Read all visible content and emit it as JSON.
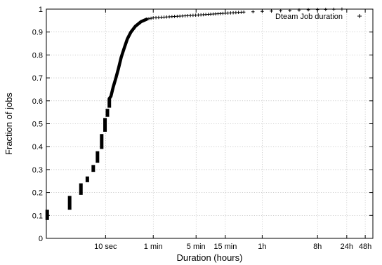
{
  "chart_data": {
    "type": "scatter",
    "xlabel": "Duration (hours)",
    "ylabel": "Fraction of jobs",
    "x_scale": "log",
    "x_unit": "hours",
    "xlim": [
      0.0003,
      64
    ],
    "ylim": [
      0,
      1
    ],
    "grid": true,
    "legend_position": "top-right",
    "x_ticks": [
      {
        "value": 0.002778,
        "label": "10 sec"
      },
      {
        "value": 0.016667,
        "label": "1 min"
      },
      {
        "value": 0.083333,
        "label": "5 min"
      },
      {
        "value": 0.25,
        "label": "15 min"
      },
      {
        "value": 1,
        "label": "1h"
      },
      {
        "value": 8,
        "label": "8h"
      },
      {
        "value": 24,
        "label": "24h"
      },
      {
        "value": 48,
        "label": "48h"
      }
    ],
    "y_ticks": [
      {
        "value": 0,
        "label": "0"
      },
      {
        "value": 0.1,
        "label": "0.1"
      },
      {
        "value": 0.2,
        "label": "0.2"
      },
      {
        "value": 0.3,
        "label": "0.3"
      },
      {
        "value": 0.4,
        "label": "0.4"
      },
      {
        "value": 0.5,
        "label": "0.5"
      },
      {
        "value": 0.6,
        "label": "0.6"
      },
      {
        "value": 0.7,
        "label": "0.7"
      },
      {
        "value": 0.8,
        "label": "0.8"
      },
      {
        "value": 0.9,
        "label": "0.9"
      },
      {
        "value": 1,
        "label": "1"
      }
    ],
    "series": [
      {
        "name": "Dteam Job duration",
        "marker": "+",
        "color": "#000000",
        "steps": [
          {
            "x": 0.00031,
            "y0": 0.08,
            "y1": 0.125
          },
          {
            "x": 0.00072,
            "y0": 0.125,
            "y1": 0.185
          },
          {
            "x": 0.0011,
            "y0": 0.19,
            "y1": 0.24
          },
          {
            "x": 0.0014,
            "y0": 0.245,
            "y1": 0.27
          },
          {
            "x": 0.00175,
            "y0": 0.29,
            "y1": 0.32
          },
          {
            "x": 0.00205,
            "y0": 0.33,
            "y1": 0.38
          },
          {
            "x": 0.0024,
            "y0": 0.39,
            "y1": 0.455
          },
          {
            "x": 0.00272,
            "y0": 0.465,
            "y1": 0.525
          },
          {
            "x": 0.00298,
            "y0": 0.53,
            "y1": 0.565
          },
          {
            "x": 0.0032,
            "y0": 0.57,
            "y1": 0.61
          }
        ],
        "curve": [
          {
            "x": 0.0034,
            "y": 0.62
          },
          {
            "x": 0.0037,
            "y": 0.66
          },
          {
            "x": 0.0041,
            "y": 0.7
          },
          {
            "x": 0.0045,
            "y": 0.74
          },
          {
            "x": 0.005,
            "y": 0.79
          },
          {
            "x": 0.0056,
            "y": 0.83
          },
          {
            "x": 0.0063,
            "y": 0.87
          },
          {
            "x": 0.0072,
            "y": 0.9
          },
          {
            "x": 0.0085,
            "y": 0.925
          },
          {
            "x": 0.0105,
            "y": 0.945
          },
          {
            "x": 0.013,
            "y": 0.956
          },
          {
            "x": 0.016667,
            "y": 0.962
          },
          {
            "x": 0.025,
            "y": 0.965
          },
          {
            "x": 0.05,
            "y": 0.97
          },
          {
            "x": 0.1,
            "y": 0.975
          },
          {
            "x": 0.25,
            "y": 0.982
          },
          {
            "x": 0.5,
            "y": 0.987
          },
          {
            "x": 1,
            "y": 0.99
          },
          {
            "x": 2,
            "y": 0.993
          },
          {
            "x": 4,
            "y": 0.996
          },
          {
            "x": 8,
            "y": 0.998
          },
          {
            "x": 20,
            "y": 1.0
          }
        ]
      }
    ]
  }
}
